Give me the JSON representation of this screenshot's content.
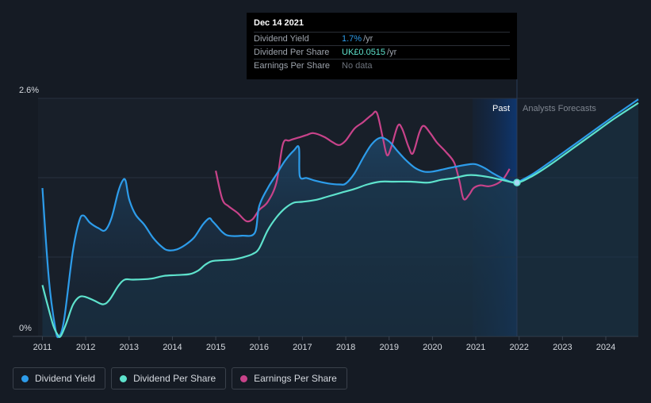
{
  "tooltip": {
    "date": "Dec 14 2021",
    "rows": [
      {
        "label": "Dividend Yield",
        "value": "1.7%",
        "unit": "/yr"
      },
      {
        "label": "Dividend Per Share",
        "value": "UK£0.0515",
        "unit": "/yr"
      },
      {
        "label": "Earnings Per Share",
        "value": "No data",
        "unit": ""
      }
    ]
  },
  "annotations": {
    "past": "Past",
    "forecast": "Analysts Forecasts"
  },
  "legend": [
    {
      "label": "Dividend Yield",
      "color": "#2d9cea"
    },
    {
      "label": "Dividend Per Share",
      "color": "#5ee2cc"
    },
    {
      "label": "Earnings Per Share",
      "color": "#c8438a"
    }
  ],
  "colors": {
    "yield": "#2d9cea",
    "dps": "#5ee2cc",
    "eps": "#c8438a",
    "background": "#151b24"
  },
  "chart_data": {
    "type": "line",
    "xlim": [
      2010.9,
      2024.75
    ],
    "ylim": [
      0,
      2.6
    ],
    "y_ticks": [
      {
        "value": 2.6,
        "label": "2.6%"
      },
      {
        "value": 0,
        "label": "0%"
      }
    ],
    "x_ticks": [
      "2011",
      "2012",
      "2013",
      "2014",
      "2015",
      "2016",
      "2017",
      "2018",
      "2019",
      "2020",
      "2021",
      "2022",
      "2023",
      "2024"
    ],
    "forecast_start": 2021.95,
    "marker": {
      "x": 2021.95,
      "y": 1.68
    },
    "series": [
      {
        "name": "Dividend Yield",
        "axis": "percent",
        "points": [
          [
            2011.0,
            1.62
          ],
          [
            2011.15,
            0.62
          ],
          [
            2011.3,
            0.08
          ],
          [
            2011.38,
            0.0
          ],
          [
            2011.5,
            0.18
          ],
          [
            2011.7,
            0.92
          ],
          [
            2011.85,
            1.26
          ],
          [
            2011.95,
            1.32
          ],
          [
            2012.1,
            1.24
          ],
          [
            2012.3,
            1.18
          ],
          [
            2012.45,
            1.16
          ],
          [
            2012.6,
            1.3
          ],
          [
            2012.75,
            1.58
          ],
          [
            2012.85,
            1.7
          ],
          [
            2012.92,
            1.7
          ],
          [
            2013.0,
            1.5
          ],
          [
            2013.15,
            1.33
          ],
          [
            2013.35,
            1.22
          ],
          [
            2013.55,
            1.08
          ],
          [
            2013.75,
            0.98
          ],
          [
            2013.9,
            0.94
          ],
          [
            2014.1,
            0.95
          ],
          [
            2014.3,
            1.0
          ],
          [
            2014.5,
            1.08
          ],
          [
            2014.7,
            1.22
          ],
          [
            2014.85,
            1.29
          ],
          [
            2014.92,
            1.26
          ],
          [
            2015.0,
            1.22
          ],
          [
            2015.15,
            1.14
          ],
          [
            2015.3,
            1.1
          ],
          [
            2015.6,
            1.1
          ],
          [
            2015.9,
            1.13
          ],
          [
            2016.0,
            1.42
          ],
          [
            2016.2,
            1.62
          ],
          [
            2016.4,
            1.77
          ],
          [
            2016.6,
            1.92
          ],
          [
            2016.8,
            2.03
          ],
          [
            2016.92,
            2.06
          ],
          [
            2016.94,
            1.75
          ],
          [
            2017.1,
            1.73
          ],
          [
            2017.3,
            1.7
          ],
          [
            2017.6,
            1.67
          ],
          [
            2017.85,
            1.66
          ],
          [
            2018.0,
            1.67
          ],
          [
            2018.2,
            1.78
          ],
          [
            2018.4,
            1.95
          ],
          [
            2018.6,
            2.1
          ],
          [
            2018.8,
            2.17
          ],
          [
            2019.0,
            2.13
          ],
          [
            2019.2,
            2.02
          ],
          [
            2019.4,
            1.92
          ],
          [
            2019.6,
            1.84
          ],
          [
            2019.8,
            1.8
          ],
          [
            2020.0,
            1.8
          ],
          [
            2020.3,
            1.83
          ],
          [
            2020.6,
            1.86
          ],
          [
            2020.85,
            1.88
          ],
          [
            2021.0,
            1.88
          ],
          [
            2021.2,
            1.84
          ],
          [
            2021.4,
            1.78
          ],
          [
            2021.6,
            1.73
          ],
          [
            2021.8,
            1.69
          ],
          [
            2021.95,
            1.68
          ]
        ]
      },
      {
        "name": "Dividend Per Share",
        "axis": "scaled",
        "points": [
          [
            2011.0,
            0.56
          ],
          [
            2011.1,
            0.38
          ],
          [
            2011.25,
            0.12
          ],
          [
            2011.35,
            0.02
          ],
          [
            2011.42,
            0.0
          ],
          [
            2011.55,
            0.14
          ],
          [
            2011.7,
            0.34
          ],
          [
            2011.85,
            0.43
          ],
          [
            2012.0,
            0.43
          ],
          [
            2012.2,
            0.39
          ],
          [
            2012.4,
            0.35
          ],
          [
            2012.55,
            0.4
          ],
          [
            2012.75,
            0.55
          ],
          [
            2012.9,
            0.62
          ],
          [
            2013.1,
            0.62
          ],
          [
            2013.5,
            0.63
          ],
          [
            2013.8,
            0.66
          ],
          [
            2014.1,
            0.67
          ],
          [
            2014.4,
            0.68
          ],
          [
            2014.6,
            0.72
          ],
          [
            2014.75,
            0.78
          ],
          [
            2014.9,
            0.82
          ],
          [
            2015.1,
            0.83
          ],
          [
            2015.4,
            0.84
          ],
          [
            2015.6,
            0.86
          ],
          [
            2015.85,
            0.9
          ],
          [
            2016.0,
            0.96
          ],
          [
            2016.2,
            1.16
          ],
          [
            2016.4,
            1.3
          ],
          [
            2016.6,
            1.4
          ],
          [
            2016.8,
            1.46
          ],
          [
            2017.0,
            1.47
          ],
          [
            2017.3,
            1.49
          ],
          [
            2017.6,
            1.53
          ],
          [
            2017.9,
            1.57
          ],
          [
            2018.2,
            1.61
          ],
          [
            2018.5,
            1.66
          ],
          [
            2018.8,
            1.69
          ],
          [
            2019.1,
            1.69
          ],
          [
            2019.5,
            1.69
          ],
          [
            2019.9,
            1.68
          ],
          [
            2020.2,
            1.71
          ],
          [
            2020.5,
            1.73
          ],
          [
            2020.8,
            1.76
          ],
          [
            2021.0,
            1.76
          ],
          [
            2021.3,
            1.74
          ],
          [
            2021.6,
            1.71
          ],
          [
            2021.95,
            1.68
          ],
          [
            2022.3,
            1.75
          ],
          [
            2022.7,
            1.87
          ],
          [
            2023.2,
            2.04
          ],
          [
            2023.7,
            2.21
          ],
          [
            2024.2,
            2.38
          ],
          [
            2024.75,
            2.55
          ]
        ]
      },
      {
        "name": "Earnings Per Share",
        "axis": "scaled",
        "points": [
          [
            2015.0,
            1.81
          ],
          [
            2015.15,
            1.5
          ],
          [
            2015.3,
            1.42
          ],
          [
            2015.5,
            1.35
          ],
          [
            2015.7,
            1.26
          ],
          [
            2015.85,
            1.28
          ],
          [
            2016.0,
            1.38
          ],
          [
            2016.2,
            1.47
          ],
          [
            2016.4,
            1.68
          ],
          [
            2016.55,
            2.1
          ],
          [
            2016.7,
            2.14
          ],
          [
            2016.9,
            2.17
          ],
          [
            2017.1,
            2.2
          ],
          [
            2017.25,
            2.22
          ],
          [
            2017.5,
            2.18
          ],
          [
            2017.7,
            2.12
          ],
          [
            2017.85,
            2.09
          ],
          [
            2018.0,
            2.14
          ],
          [
            2018.2,
            2.27
          ],
          [
            2018.4,
            2.34
          ],
          [
            2018.6,
            2.42
          ],
          [
            2018.72,
            2.44
          ],
          [
            2018.85,
            2.18
          ],
          [
            2018.95,
            1.98
          ],
          [
            2019.05,
            2.07
          ],
          [
            2019.2,
            2.3
          ],
          [
            2019.3,
            2.27
          ],
          [
            2019.45,
            2.07
          ],
          [
            2019.55,
            2.0
          ],
          [
            2019.7,
            2.23
          ],
          [
            2019.8,
            2.3
          ],
          [
            2019.95,
            2.22
          ],
          [
            2020.1,
            2.12
          ],
          [
            2020.3,
            2.02
          ],
          [
            2020.5,
            1.9
          ],
          [
            2020.62,
            1.7
          ],
          [
            2020.72,
            1.5
          ],
          [
            2020.85,
            1.55
          ],
          [
            2020.95,
            1.62
          ],
          [
            2021.1,
            1.65
          ],
          [
            2021.3,
            1.64
          ],
          [
            2021.5,
            1.67
          ],
          [
            2021.65,
            1.73
          ],
          [
            2021.78,
            1.83
          ]
        ]
      },
      {
        "name": "Dividend Yield forecast",
        "axis": "percent",
        "points": [
          [
            2021.95,
            1.68
          ],
          [
            2022.3,
            1.77
          ],
          [
            2022.7,
            1.9
          ],
          [
            2023.2,
            2.07
          ],
          [
            2023.7,
            2.24
          ],
          [
            2024.2,
            2.41
          ],
          [
            2024.75,
            2.59
          ]
        ]
      }
    ]
  }
}
